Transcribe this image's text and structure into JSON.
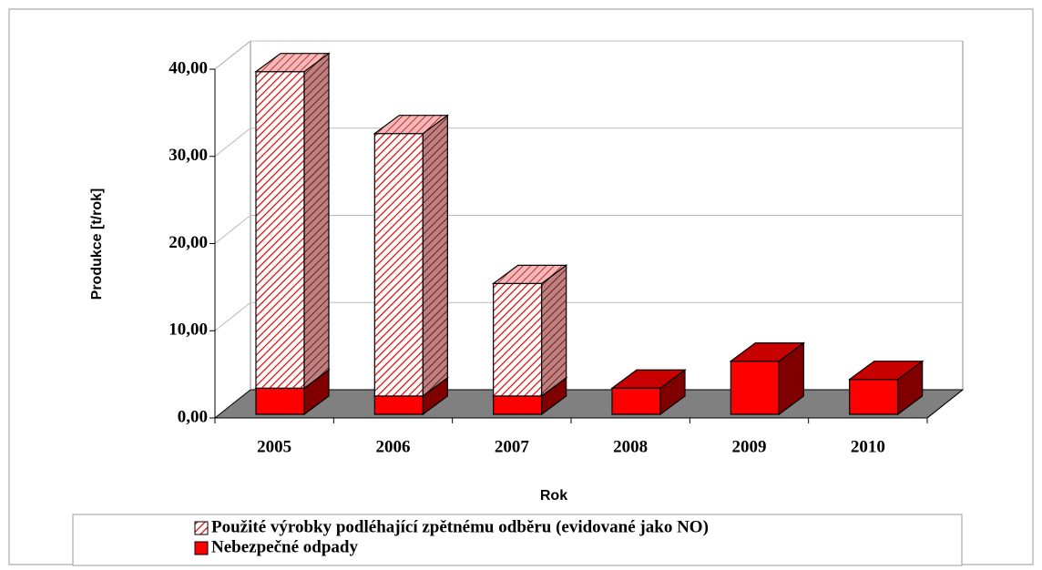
{
  "chart_data": {
    "type": "bar3d_stacked",
    "x_label": "Rok",
    "y_label": "Produkce [t/rok]",
    "categories": [
      "2005",
      "2006",
      "2007",
      "2008",
      "2009",
      "2010"
    ],
    "series": [
      {
        "name": "Nebezpečné odpady",
        "color": "#ff0000",
        "hatch": false,
        "values": [
          3.0,
          2.1,
          2.1,
          3.0,
          6.1,
          4.0
        ]
      },
      {
        "name": "Použité výrobky podléhající zpětnému odběru (evidované jako NO)",
        "color": "#ff0000",
        "hatch": true,
        "values": [
          36.3,
          30.1,
          12.9,
          null,
          null,
          null
        ]
      }
    ],
    "ylim": [
      0,
      40
    ],
    "yticks": [
      {
        "value": 0,
        "label": "0,00"
      },
      {
        "value": 10,
        "label": "10,00"
      },
      {
        "value": 20,
        "label": "20,00"
      },
      {
        "value": 30,
        "label": "30,00"
      },
      {
        "value": 40,
        "label": "40,00"
      }
    ],
    "grid": true
  }
}
